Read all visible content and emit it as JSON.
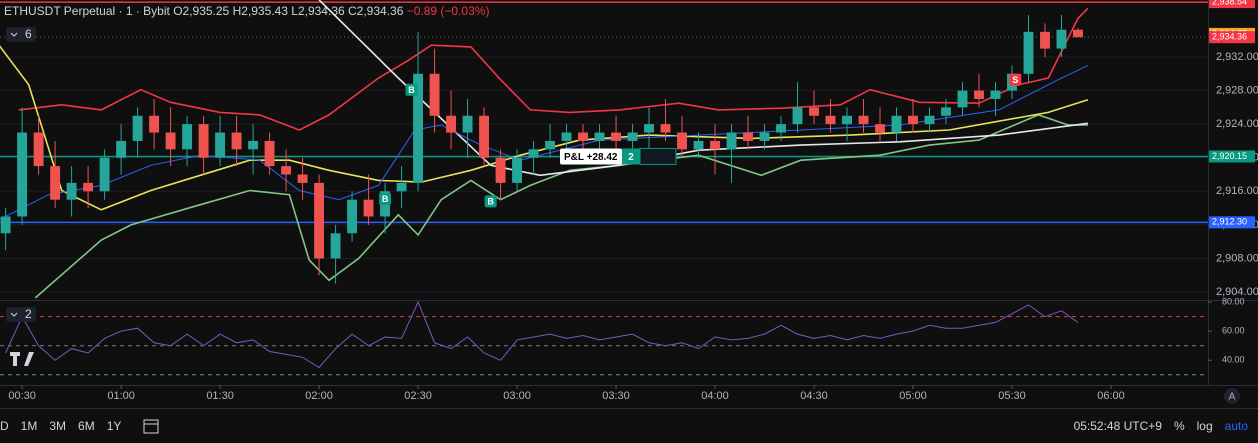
{
  "chart_data": [
    {
      "type": "candlestick",
      "title": "ETHUSDT Perpetual · 1 · Bybit",
      "ohlc_text": "O2,935.25 H2,935.43 L2,934.36 C2,934.36",
      "change_text": "−0.89 (−0.03%)",
      "indicator_count": 6,
      "up_color": "#26a69a",
      "down_color": "#ef5350",
      "x": [
        25,
        30,
        35,
        40,
        45,
        50,
        55,
        60,
        65,
        70,
        75,
        80,
        85,
        90,
        95,
        100,
        105,
        110,
        115,
        120,
        125,
        130,
        135,
        140,
        145,
        150,
        155,
        160,
        165,
        170,
        175,
        180,
        185,
        190,
        195,
        200,
        205,
        210,
        215,
        220,
        225,
        230,
        235,
        240,
        245,
        250,
        255,
        260,
        265,
        270,
        275,
        280,
        285,
        290,
        295,
        300,
        305,
        310,
        315,
        320,
        325,
        330,
        335,
        340,
        345,
        350
      ],
      "open": [
        2911,
        2913,
        2923,
        2919,
        2915,
        2917,
        2916,
        2920,
        2922,
        2925,
        2923,
        2921,
        2924,
        2920,
        2923,
        2921,
        2922,
        2919,
        2918,
        2917,
        2908,
        2911,
        2915,
        2913,
        2916,
        2917,
        2930,
        2925,
        2923,
        2925,
        2920,
        2917,
        2920,
        2921,
        2922,
        2923,
        2922,
        2923,
        2922,
        2923,
        2924,
        2923,
        2921,
        2922,
        2921,
        2923,
        2922,
        2923,
        2924,
        2926,
        2925,
        2924,
        2925,
        2924,
        2923,
        2925,
        2924,
        2925,
        2926,
        2928,
        2927,
        2928,
        2930,
        2935,
        2933,
        2935.25
      ],
      "high": [
        2914,
        2926,
        2925,
        2922,
        2919,
        2919,
        2921,
        2924,
        2926,
        2927,
        2926,
        2925,
        2925,
        2925,
        2925,
        2924,
        2923,
        2921,
        2920,
        2918,
        2912,
        2916,
        2918,
        2917,
        2919,
        2935,
        2933,
        2928,
        2927,
        2926,
        2921,
        2921,
        2922,
        2924,
        2924,
        2924,
        2924,
        2925,
        2924,
        2926,
        2927,
        2925,
        2923,
        2924,
        2924,
        2925,
        2924,
        2925,
        2929,
        2928,
        2927,
        2926,
        2927,
        2926,
        2926,
        2927,
        2926,
        2927,
        2929,
        2930,
        2929,
        2931,
        2937,
        2936,
        2937,
        2935.43
      ],
      "low": [
        2909,
        2912,
        2918,
        2914,
        2913,
        2914,
        2915,
        2918,
        2920,
        2921,
        2919,
        2919,
        2918,
        2919,
        2919,
        2918,
        2918,
        2916,
        2915,
        2906,
        2905,
        2910,
        2912,
        2911,
        2914,
        2916,
        2923,
        2921,
        2920,
        2919,
        2915,
        2916,
        2918,
        2920,
        2920,
        2921,
        2921,
        2921,
        2921,
        2921,
        2922,
        2920,
        2920,
        2918,
        2917,
        2921,
        2921,
        2922,
        2923,
        2924,
        2923,
        2922,
        2923,
        2922,
        2922,
        2923,
        2923,
        2924,
        2925,
        2926,
        2925,
        2927,
        2929,
        2932,
        2932,
        2934.36
      ],
      "close": [
        2913,
        2923,
        2919,
        2915,
        2917,
        2916,
        2920,
        2922,
        2925,
        2923,
        2921,
        2924,
        2920,
        2923,
        2921,
        2922,
        2919,
        2918,
        2917,
        2908,
        2911,
        2915,
        2913,
        2916,
        2917,
        2930,
        2925,
        2923,
        2925,
        2920,
        2917,
        2920,
        2921,
        2922,
        2923,
        2922,
        2923,
        2922,
        2923,
        2924,
        2923,
        2921,
        2922,
        2921,
        2923,
        2922,
        2923,
        2924,
        2926,
        2925,
        2924,
        2925,
        2924,
        2923,
        2925,
        2924,
        2925,
        2926,
        2928,
        2927,
        2928,
        2930,
        2935,
        2933,
        2935.25,
        2934.36
      ],
      "overlays": [
        {
          "color": "#f23645",
          "x": [
            29,
            42,
            54,
            66,
            75,
            90,
            102,
            114,
            123,
            138,
            147,
            154,
            166,
            175,
            184,
            196,
            211,
            229,
            241,
            260,
            278,
            287,
            302,
            320,
            332,
            341,
            350,
            353
          ],
          "values": [
            2925.7,
            2926.3,
            2925.7,
            2928.1,
            2926.6,
            2925.4,
            2925.1,
            2923.3,
            2925.1,
            2929.5,
            2931.6,
            2933.4,
            2933.2,
            2929.3,
            2925.7,
            2925.4,
            2925.7,
            2926.5,
            2925.7,
            2925.9,
            2926.3,
            2928.1,
            2926.6,
            2926.5,
            2928.7,
            2929.5,
            2936.6,
            2937.8
          ]
        },
        {
          "color": "#81c784",
          "x": [
            34,
            54,
            63,
            84,
            99,
            111,
            117,
            123,
            132,
            144,
            150,
            157,
            166,
            175,
            184,
            196,
            211,
            223,
            235,
            254,
            266,
            290,
            305,
            320,
            338,
            347,
            353
          ],
          "values": [
            2903.3,
            2910.2,
            2912.0,
            2914.4,
            2916.1,
            2915.6,
            2907.8,
            2905.4,
            2908.0,
            2913.2,
            2910.8,
            2915.0,
            2917.3,
            2915.0,
            2916.7,
            2918.5,
            2919.1,
            2919.7,
            2920.3,
            2917.9,
            2919.7,
            2920.3,
            2921.5,
            2922.1,
            2925.1,
            2923.9,
            2923.9
          ]
        },
        {
          "color": "#e8e8e8",
          "x": [
            120,
            144,
            172,
            187,
            211,
            235,
            266,
            296,
            326,
            353
          ],
          "values": [
            2938.8,
            2929.5,
            2919.1,
            2917.9,
            2919.1,
            2920.9,
            2921.5,
            2921.9,
            2922.7,
            2924.1
          ]
        },
        {
          "color": "#e9e35a",
          "x": [
            23,
            32,
            42,
            54,
            69,
            84,
            99,
            111,
            123,
            138,
            151,
            166,
            181,
            199,
            220,
            251,
            281,
            311,
            341,
            353
          ],
          "values": [
            2933.4,
            2928.7,
            2916.1,
            2913.8,
            2916.1,
            2917.9,
            2919.7,
            2919.7,
            2918.5,
            2917.3,
            2917.1,
            2918.5,
            2920.3,
            2922.1,
            2922.7,
            2922.3,
            2922.7,
            2923.3,
            2925.4,
            2926.9
          ]
        },
        {
          "color": "#2962ff",
          "x": [
            23,
            38,
            54,
            69,
            84,
            102,
            114,
            126,
            138,
            149,
            157,
            169,
            181,
            205,
            235,
            266,
            296,
            326,
            344,
            353
          ],
          "values": [
            2912.6,
            2915.6,
            2916.7,
            2919.1,
            2920.3,
            2919.7,
            2916.1,
            2915.0,
            2916.7,
            2923.3,
            2923.9,
            2921.5,
            2919.7,
            2922.1,
            2922.7,
            2923.3,
            2923.9,
            2925.7,
            2929.3,
            2931.0
          ]
        }
      ],
      "price_lines": [
        {
          "value": 2938.54,
          "label": "2,938.54",
          "color": "#f23645",
          "style": "solid",
          "line": true
        },
        {
          "value": 2934.75,
          "label": "2,934.75",
          "color": "#f5a623",
          "style": "solid",
          "line": false
        },
        {
          "value": 2934.36,
          "label": "2,934.36",
          "color": "#f23645",
          "style": "dotted",
          "line": true
        },
        {
          "value": 2920.15,
          "label": "2,920.15",
          "color": "#089981",
          "style": "solid",
          "line": true
        },
        {
          "value": 2912.3,
          "label": "2,912.30",
          "color": "#2962ff",
          "style": "solid",
          "line": true
        }
      ],
      "markers": [
        {
          "text": "B",
          "x": 140,
          "y": 2915.1,
          "color": "#089981"
        },
        {
          "text": "B",
          "x": 148,
          "y": 2928.1,
          "color": "#089981"
        },
        {
          "text": "B",
          "x": 172,
          "y": 2914.8,
          "color": "#089981"
        },
        {
          "text": "S",
          "x": 331,
          "y": 2929.3,
          "color": "#f23645"
        }
      ],
      "position": {
        "pnl": "P&L +28.42",
        "qty": "2"
      },
      "xlim": [
        23.3,
        389.4
      ],
      "ylim": [
        2903.05,
        2938.79
      ],
      "yticks": [
        {
          "value": 2904,
          "label": "2,904.00"
        },
        {
          "value": 2908,
          "label": "2,908.00"
        },
        {
          "value": 2912,
          "label": "2,912.00"
        },
        {
          "value": 2916,
          "label": "2,916.00"
        },
        {
          "value": 2920,
          "label": "2,920.00"
        },
        {
          "value": 2924,
          "label": "2,924.00"
        },
        {
          "value": 2928,
          "label": "2,928.00"
        },
        {
          "value": 2932,
          "label": "2,932.00"
        }
      ],
      "xticks": [
        {
          "value": 30,
          "label": "00:30"
        },
        {
          "value": 60,
          "label": "01:00"
        },
        {
          "value": 90,
          "label": "01:30"
        },
        {
          "value": 120,
          "label": "02:00"
        },
        {
          "value": 150,
          "label": "02:30"
        },
        {
          "value": 180,
          "label": "03:00"
        },
        {
          "value": 210,
          "label": "03:30"
        },
        {
          "value": 240,
          "label": "04:00"
        },
        {
          "value": 270,
          "label": "04:30"
        },
        {
          "value": 300,
          "label": "05:00"
        },
        {
          "value": 330,
          "label": "05:30"
        },
        {
          "value": 360,
          "label": "06:00"
        }
      ]
    },
    {
      "type": "line",
      "indicator_count": 2,
      "color": "#7e57c2",
      "values": [
        45,
        70,
        50,
        40,
        48,
        45,
        55,
        60,
        62,
        52,
        50,
        58,
        50,
        58,
        52,
        54,
        46,
        44,
        42,
        35,
        48,
        58,
        50,
        56,
        55,
        80,
        52,
        48,
        56,
        45,
        40,
        54,
        56,
        58,
        55,
        57,
        54,
        56,
        58,
        52,
        50,
        52,
        48,
        56,
        54,
        55,
        58,
        64,
        58,
        55,
        57,
        54,
        57,
        55,
        58,
        60,
        64,
        62,
        62,
        64,
        66,
        72,
        78,
        70,
        74,
        66
      ],
      "ylim": [
        23,
        81.4
      ],
      "yticks": [
        {
          "value": 40,
          "label": "40.00"
        },
        {
          "value": 60,
          "label": "60.00"
        },
        {
          "value": 80,
          "label": "80.00"
        }
      ],
      "levels": [
        {
          "value": 70,
          "color": "#f23645"
        },
        {
          "value": 50,
          "color": "#787b86"
        },
        {
          "value": 30,
          "color": "#4caf50"
        }
      ]
    }
  ],
  "toolbar": {
    "ranges": [
      "D",
      "1M",
      "3M",
      "6M",
      "1Y"
    ],
    "clock": "05:52:48 UTC+9",
    "percent": "%",
    "log": "log",
    "auto": "auto",
    "axis_button": "A"
  }
}
